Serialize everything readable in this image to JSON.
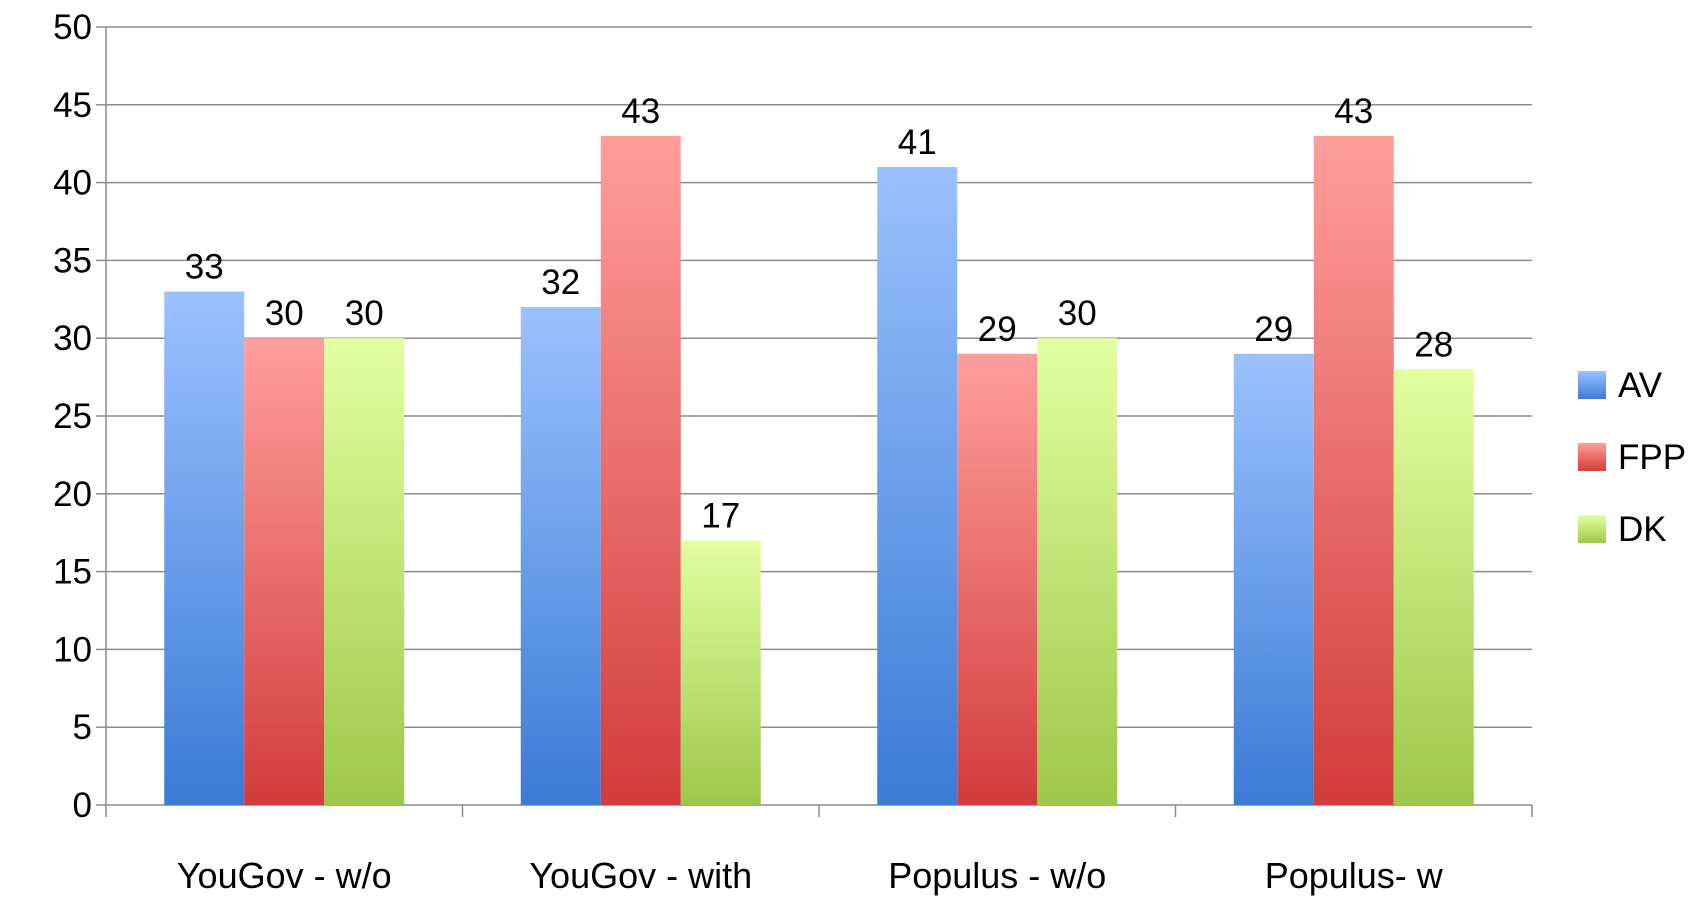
{
  "chart_data": {
    "type": "bar",
    "title": "",
    "xlabel": "",
    "ylabel": "",
    "categories": [
      "YouGov - w/o",
      "YouGov - with",
      "Populus - w/o",
      "Populus- w"
    ],
    "series": [
      {
        "name": "AV",
        "values": [
          33,
          32,
          41,
          29
        ],
        "color": "#4f81bd",
        "color_light": "#9bc1ff",
        "color_dark": "#3a7bd5"
      },
      {
        "name": "FPP",
        "values": [
          30,
          43,
          29,
          43
        ],
        "color": "#c0504d",
        "color_light": "#ff9e9b",
        "color_dark": "#d23c3b"
      },
      {
        "name": "DK",
        "values": [
          30,
          17,
          30,
          28
        ],
        "color": "#9bbb59",
        "color_light": "#e3ffa0",
        "color_dark": "#9dc74a"
      }
    ],
    "ylim": [
      0,
      50
    ],
    "yticks": [
      0,
      5,
      10,
      15,
      20,
      25,
      30,
      35,
      40,
      45,
      50
    ],
    "grid": true,
    "data_labels": true,
    "legend_position": "right"
  }
}
